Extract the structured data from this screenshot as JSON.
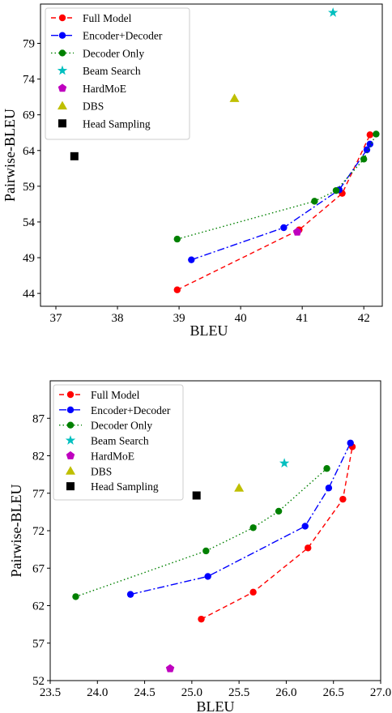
{
  "chart_data": [
    {
      "type": "line",
      "xlabel": "BLEU",
      "ylabel": "Pairwise-BLEU",
      "xlim": [
        36.75,
        42.3
      ],
      "ylim": [
        42.2,
        84.5
      ],
      "xticks": [
        37,
        38,
        39,
        40,
        41,
        42
      ],
      "yticks": [
        44,
        49,
        54,
        59,
        64,
        69,
        74,
        79
      ],
      "legend_position": "upper-left",
      "grid": false,
      "series": [
        {
          "name": "Full Model",
          "color": "#ff0000",
          "marker": "circle",
          "line": "dashed",
          "points": [
            [
              38.97,
              44.5
            ],
            [
              40.95,
              52.9
            ],
            [
              41.65,
              58.0
            ],
            [
              42.1,
              66.2
            ]
          ]
        },
        {
          "name": "Encoder+Decoder",
          "color": "#0000ff",
          "marker": "circle",
          "line": "dashdot",
          "points": [
            [
              39.2,
              48.7
            ],
            [
              40.7,
              53.2
            ],
            [
              41.6,
              58.5
            ],
            [
              42.05,
              64.1
            ],
            [
              42.1,
              64.9
            ]
          ]
        },
        {
          "name": "Decoder Only",
          "color": "#008000",
          "marker": "circle",
          "line": "dotted",
          "points": [
            [
              38.97,
              51.6
            ],
            [
              41.2,
              56.9
            ],
            [
              41.55,
              58.4
            ],
            [
              42.0,
              62.8
            ],
            [
              42.2,
              66.3
            ]
          ]
        },
        {
          "name": "Beam Search",
          "color": "#00bfbf",
          "marker": "star",
          "line": "none",
          "points": [
            [
              41.5,
              83.3
            ]
          ]
        },
        {
          "name": "HardMoE",
          "color": "#bf00bf",
          "marker": "pentagon",
          "line": "none",
          "points": [
            [
              40.92,
              52.6
            ]
          ]
        },
        {
          "name": "DBS",
          "color": "#bfbf00",
          "marker": "triangle",
          "line": "none",
          "points": [
            [
              39.9,
              71.3
            ]
          ]
        },
        {
          "name": "Head Sampling",
          "color": "#000000",
          "marker": "square",
          "line": "none",
          "points": [
            [
              37.3,
              63.2
            ]
          ]
        }
      ]
    },
    {
      "type": "line",
      "xlabel": "BLEU",
      "ylabel": "Pairwise-BLEU",
      "xlim": [
        23.5,
        27.0
      ],
      "ylim": [
        52.0,
        92.0
      ],
      "xticks": [
        23.5,
        24.0,
        24.5,
        25.0,
        25.5,
        26.0,
        26.5,
        27.0
      ],
      "xtick_labels": [
        "23.5",
        "24.0",
        "24.5",
        "25.0",
        "25.5",
        "26.0",
        "26.5",
        "27.0"
      ],
      "yticks": [
        52,
        57,
        62,
        67,
        72,
        77,
        82,
        87
      ],
      "legend_position": "upper-left",
      "grid": false,
      "series": [
        {
          "name": "Full Model",
          "color": "#ff0000",
          "marker": "circle",
          "line": "dashed",
          "points": [
            [
              25.1,
              60.2
            ],
            [
              25.65,
              63.8
            ],
            [
              26.23,
              69.7
            ],
            [
              26.6,
              76.2
            ],
            [
              26.7,
              83.2
            ]
          ]
        },
        {
          "name": "Encoder+Decoder",
          "color": "#0000ff",
          "marker": "circle",
          "line": "dashdot",
          "points": [
            [
              24.35,
              63.5
            ],
            [
              25.17,
              65.9
            ],
            [
              26.2,
              72.6
            ],
            [
              26.45,
              77.7
            ],
            [
              26.68,
              83.7
            ]
          ]
        },
        {
          "name": "Decoder Only",
          "color": "#008000",
          "marker": "circle",
          "line": "dotted",
          "points": [
            [
              23.77,
              63.2
            ],
            [
              25.15,
              69.3
            ],
            [
              25.65,
              72.4
            ],
            [
              25.92,
              74.6
            ],
            [
              26.43,
              80.3
            ]
          ]
        },
        {
          "name": "Beam Search",
          "color": "#00bfbf",
          "marker": "star",
          "line": "none",
          "points": [
            [
              25.98,
              81.0
            ]
          ]
        },
        {
          "name": "HardMoE",
          "color": "#bf00bf",
          "marker": "pentagon",
          "line": "none",
          "points": [
            [
              24.77,
              53.6
            ]
          ]
        },
        {
          "name": "DBS",
          "color": "#bfbf00",
          "marker": "triangle",
          "line": "none",
          "points": [
            [
              25.5,
              77.7
            ]
          ]
        },
        {
          "name": "Head Sampling",
          "color": "#000000",
          "marker": "square",
          "line": "none",
          "points": [
            [
              25.05,
              76.7
            ]
          ]
        }
      ]
    }
  ]
}
